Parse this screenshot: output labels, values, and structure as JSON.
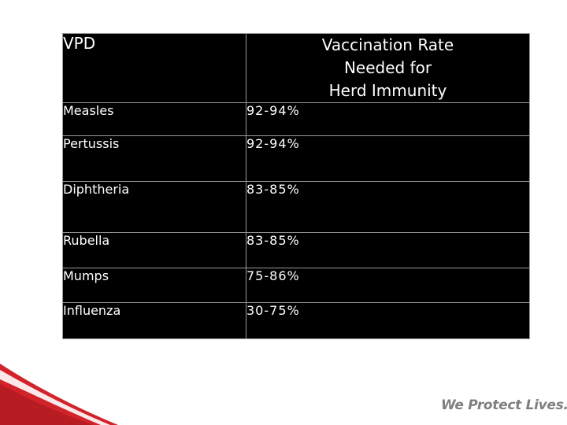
{
  "table": {
    "headers": {
      "vpd": "VPD",
      "rate_lines": [
        "Vaccination Rate",
        "Needed for",
        "Herd Immunity"
      ]
    },
    "rows": [
      {
        "name": "Measles",
        "value": "92-94%"
      },
      {
        "name": "Pertussis",
        "value": "92-94%"
      },
      {
        "name": "Diphtheria",
        "value": "83-85%"
      },
      {
        "name": "Rubella",
        "value": "83-85%"
      },
      {
        "name": "Mumps",
        "value": "75-86%"
      },
      {
        "name": "Influenza",
        "value": "30-75%"
      }
    ]
  },
  "footer": {
    "tagline": "We Protect Lives."
  },
  "colors": {
    "table_bg": "#000000",
    "table_text": "#ffffff",
    "swoosh_red": "#d2232a",
    "tagline_gray": "#7f7f7f"
  }
}
